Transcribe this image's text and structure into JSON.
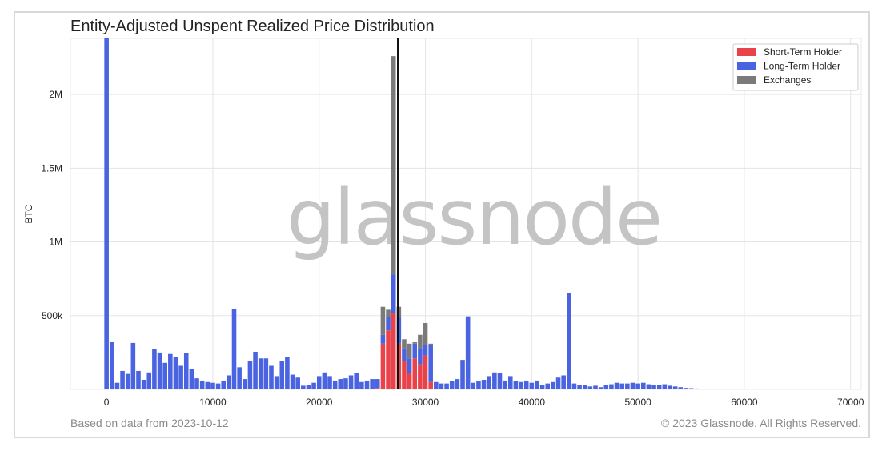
{
  "header": {
    "title": "Entity-Adjusted Unspent Realized Price Distribution"
  },
  "footer": {
    "source_note": "Based on data from 2023-10-12",
    "copyright": "© 2023 Glassnode. All Rights Reserved."
  },
  "watermark": {
    "text": "glassnode"
  },
  "colors": {
    "short_term": "#e8424a",
    "long_term": "#4a63e0",
    "exchanges": "#7a7a7a",
    "marker_line": "#111111",
    "grid": "#e5e5e5"
  },
  "chart_data": {
    "type": "bar",
    "stacked": true,
    "title": "Entity-Adjusted Unspent Realized Price Distribution",
    "xlabel": "",
    "ylabel": "BTC",
    "xlim": [
      -3400,
      71000
    ],
    "ylim": [
      0,
      2380000
    ],
    "x_ticks": [
      0,
      10000,
      20000,
      30000,
      40000,
      50000,
      60000,
      70000
    ],
    "x_tick_labels": [
      "0",
      "10000",
      "20000",
      "30000",
      "40000",
      "50000",
      "60000",
      "70000"
    ],
    "y_ticks": [
      500000,
      1000000,
      1500000,
      2000000
    ],
    "y_tick_labels": [
      "500k",
      "1M",
      "1.5M",
      "2M"
    ],
    "grid": true,
    "legend_position": "top-right",
    "bin_width": 500,
    "current_price_marker": 27400,
    "series": [
      {
        "name": "Short-Term Holder",
        "color": "#e8424a",
        "points": [
          [
            25500,
            10000
          ],
          [
            26000,
            310000
          ],
          [
            26500,
            400000
          ],
          [
            27000,
            520000
          ],
          [
            27500,
            310000
          ],
          [
            28000,
            190000
          ],
          [
            28500,
            110000
          ],
          [
            29000,
            210000
          ],
          [
            29500,
            170000
          ],
          [
            30000,
            230000
          ],
          [
            30500,
            50000
          ]
        ]
      },
      {
        "name": "Long-Term Holder",
        "color": "#4a63e0",
        "points": [
          [
            0,
            2380000
          ],
          [
            500,
            320000
          ],
          [
            1000,
            45000
          ],
          [
            1500,
            125000
          ],
          [
            2000,
            105000
          ],
          [
            2500,
            315000
          ],
          [
            3000,
            125000
          ],
          [
            3500,
            65000
          ],
          [
            4000,
            115000
          ],
          [
            4500,
            275000
          ],
          [
            5000,
            250000
          ],
          [
            5500,
            180000
          ],
          [
            6000,
            240000
          ],
          [
            6500,
            220000
          ],
          [
            7000,
            160000
          ],
          [
            7500,
            245000
          ],
          [
            8000,
            140000
          ],
          [
            8500,
            75000
          ],
          [
            9000,
            55000
          ],
          [
            9500,
            50000
          ],
          [
            10000,
            45000
          ],
          [
            10500,
            40000
          ],
          [
            11000,
            60000
          ],
          [
            11500,
            95000
          ],
          [
            12000,
            545000
          ],
          [
            12500,
            150000
          ],
          [
            13000,
            70000
          ],
          [
            13500,
            190000
          ],
          [
            14000,
            255000
          ],
          [
            14500,
            210000
          ],
          [
            15000,
            210000
          ],
          [
            15500,
            160000
          ],
          [
            16000,
            90000
          ],
          [
            16500,
            190000
          ],
          [
            17000,
            220000
          ],
          [
            17500,
            100000
          ],
          [
            18000,
            80000
          ],
          [
            18500,
            25000
          ],
          [
            19000,
            30000
          ],
          [
            19500,
            45000
          ],
          [
            20000,
            90000
          ],
          [
            20500,
            115000
          ],
          [
            21000,
            90000
          ],
          [
            21500,
            60000
          ],
          [
            22000,
            70000
          ],
          [
            22500,
            75000
          ],
          [
            23000,
            95000
          ],
          [
            23500,
            110000
          ],
          [
            24000,
            50000
          ],
          [
            24500,
            60000
          ],
          [
            25000,
            70000
          ],
          [
            25500,
            60000
          ],
          [
            26000,
            60000
          ],
          [
            26500,
            90000
          ],
          [
            27000,
            260000
          ],
          [
            27500,
            180000
          ],
          [
            28000,
            90000
          ],
          [
            28500,
            100000
          ],
          [
            29000,
            100000
          ],
          [
            29500,
            110000
          ],
          [
            30000,
            70000
          ],
          [
            30500,
            250000
          ],
          [
            31000,
            50000
          ],
          [
            31500,
            40000
          ],
          [
            32000,
            40000
          ],
          [
            32500,
            55000
          ],
          [
            33000,
            70000
          ],
          [
            33500,
            200000
          ],
          [
            34000,
            495000
          ],
          [
            34500,
            45000
          ],
          [
            35000,
            55000
          ],
          [
            35500,
            65000
          ],
          [
            36000,
            90000
          ],
          [
            36500,
            115000
          ],
          [
            37000,
            110000
          ],
          [
            37500,
            60000
          ],
          [
            38000,
            90000
          ],
          [
            38500,
            55000
          ],
          [
            39000,
            50000
          ],
          [
            39500,
            60000
          ],
          [
            40000,
            45000
          ],
          [
            40500,
            60000
          ],
          [
            41000,
            30000
          ],
          [
            41500,
            40000
          ],
          [
            42000,
            50000
          ],
          [
            42500,
            80000
          ],
          [
            43000,
            95000
          ],
          [
            43500,
            655000
          ],
          [
            44000,
            40000
          ],
          [
            44500,
            30000
          ],
          [
            45000,
            30000
          ],
          [
            45500,
            20000
          ],
          [
            46000,
            25000
          ],
          [
            46500,
            15000
          ],
          [
            47000,
            30000
          ],
          [
            47500,
            35000
          ],
          [
            48000,
            45000
          ],
          [
            48500,
            40000
          ],
          [
            49000,
            40000
          ],
          [
            49500,
            45000
          ],
          [
            50000,
            40000
          ],
          [
            50500,
            45000
          ],
          [
            51000,
            35000
          ],
          [
            51500,
            30000
          ],
          [
            52000,
            30000
          ],
          [
            52500,
            35000
          ],
          [
            53000,
            25000
          ],
          [
            53500,
            20000
          ],
          [
            54000,
            15000
          ],
          [
            54500,
            10000
          ],
          [
            55000,
            8000
          ],
          [
            55500,
            6000
          ],
          [
            56000,
            5000
          ],
          [
            56500,
            4000
          ],
          [
            57000,
            3000
          ],
          [
            57500,
            2000
          ],
          [
            58000,
            1000
          ]
        ]
      },
      {
        "name": "Exchanges",
        "color": "#7a7a7a",
        "points": [
          [
            26000,
            190000
          ],
          [
            26500,
            50000
          ],
          [
            27000,
            1480000
          ],
          [
            27500,
            70000
          ],
          [
            28000,
            60000
          ],
          [
            28500,
            100000
          ],
          [
            29000,
            10000
          ],
          [
            29500,
            90000
          ],
          [
            30000,
            150000
          ],
          [
            30500,
            10000
          ]
        ]
      }
    ]
  }
}
